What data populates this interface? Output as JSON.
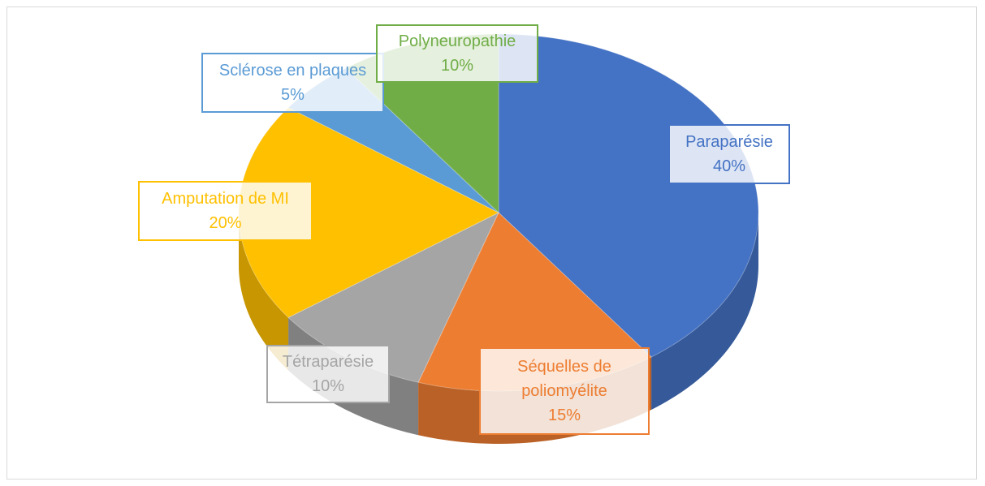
{
  "chart_data": {
    "type": "pie3d",
    "categories": [
      "Paraparésie",
      "Séquelles de poliomyélite",
      "Tétraparésie",
      "Amputation de MI",
      "Sclérose en plaques",
      "Polyneuropathie"
    ],
    "values": [
      40,
      15,
      10,
      20,
      5,
      10
    ],
    "value_labels": [
      "40%",
      "15%",
      "10%",
      "20%",
      "5%",
      "10%"
    ],
    "colors": [
      "#4472c4",
      "#ed7d31",
      "#a5a5a5",
      "#ffc000",
      "#5b9bd5",
      "#70ad47"
    ]
  }
}
